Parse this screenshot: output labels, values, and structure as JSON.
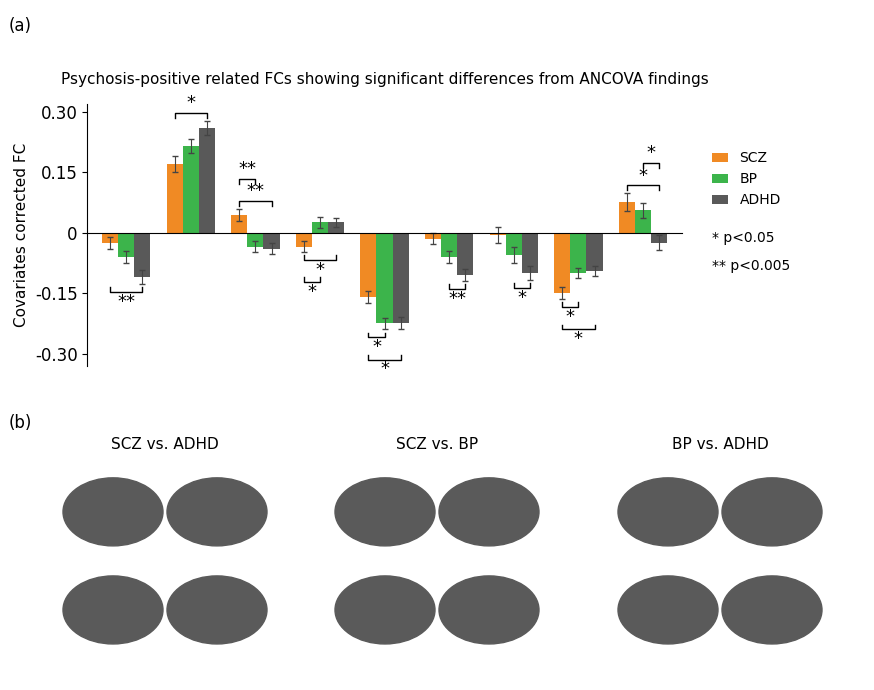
{
  "chart_data": {
    "type": "bar",
    "title": "Psychosis-positive related FCs showing significant differences from ANCOVA findings",
    "y_label": "Covariates corrected FC",
    "categories": [
      null,
      null,
      null,
      null,
      null,
      null,
      null,
      null,
      null
    ],
    "series": [
      {
        "name": "SCZ",
        "color": "#f08a24",
        "values": [
          -0.025,
          0.17,
          0.043,
          -0.035,
          -0.16,
          -0.015,
          -0.005,
          -0.15,
          0.075
        ],
        "errors": [
          0.015,
          0.02,
          0.015,
          0.013,
          0.015,
          0.013,
          0.02,
          0.015,
          0.022
        ]
      },
      {
        "name": "BP",
        "color": "#3cb44b",
        "values": [
          -0.06,
          0.215,
          -0.035,
          0.025,
          -0.225,
          -0.06,
          -0.055,
          -0.1,
          0.055
        ],
        "errors": [
          0.015,
          0.017,
          0.013,
          0.013,
          0.013,
          0.015,
          0.02,
          0.013,
          0.018
        ]
      },
      {
        "name": "ADHD",
        "color": "#595959",
        "values": [
          -0.11,
          0.26,
          -0.04,
          0.025,
          -0.225,
          -0.105,
          -0.1,
          -0.095,
          -0.025
        ],
        "errors": [
          0.017,
          0.017,
          0.013,
          0.012,
          0.015,
          0.015,
          0.017,
          0.013,
          0.018
        ]
      }
    ],
    "ylim": [
      -0.33,
      0.32
    ],
    "yticks": [
      {
        "value": -0.3,
        "label": "-0.30"
      },
      -0.15,
      0,
      0.15,
      {
        "value": 0.3,
        "label": "0.30"
      }
    ],
    "legend": "right",
    "annotations": [
      "* p<0.05",
      "** p<0.005"
    ],
    "significance": [
      {
        "group": 0,
        "pair": [
          "SCZ",
          "ADHD"
        ],
        "label": "**"
      },
      {
        "group": 1,
        "pair": [
          "SCZ",
          "ADHD"
        ],
        "label": "*"
      },
      {
        "group": 2,
        "pair": [
          "SCZ",
          "ADHD"
        ],
        "label": "**"
      },
      {
        "group": 2,
        "pair": [
          "SCZ",
          "BP"
        ],
        "label": "**"
      },
      {
        "group": 3,
        "pair": [
          "SCZ",
          "ADHD"
        ],
        "label": "*"
      },
      {
        "group": 3,
        "pair": [
          "SCZ",
          "BP"
        ],
        "label": "*"
      },
      {
        "group": 4,
        "pair": [
          "SCZ",
          "BP"
        ],
        "label": "*"
      },
      {
        "group": 4,
        "pair": [
          "SCZ",
          "ADHD"
        ],
        "label": "*"
      },
      {
        "group": 5,
        "pair": [
          "BP",
          "ADHD"
        ],
        "label": "**"
      },
      {
        "group": 6,
        "pair": [
          "BP",
          "ADHD"
        ],
        "label": "*"
      },
      {
        "group": 7,
        "pair": [
          "SCZ",
          "BP"
        ],
        "label": "*"
      },
      {
        "group": 7,
        "pair": [
          "SCZ",
          "ADHD"
        ],
        "label": "*"
      },
      {
        "group": 8,
        "pair": [
          "SCZ",
          "ADHD"
        ],
        "label": "*"
      },
      {
        "group": 8,
        "pair": [
          "BP",
          "ADHD"
        ],
        "label": "*"
      }
    ]
  },
  "panel_labels": [
    "(a)",
    "(b)"
  ],
  "brain_maps": {
    "titles": [
      "SCZ vs. ADHD",
      "SCZ vs. BP",
      "BP vs. ADHD"
    ]
  }
}
